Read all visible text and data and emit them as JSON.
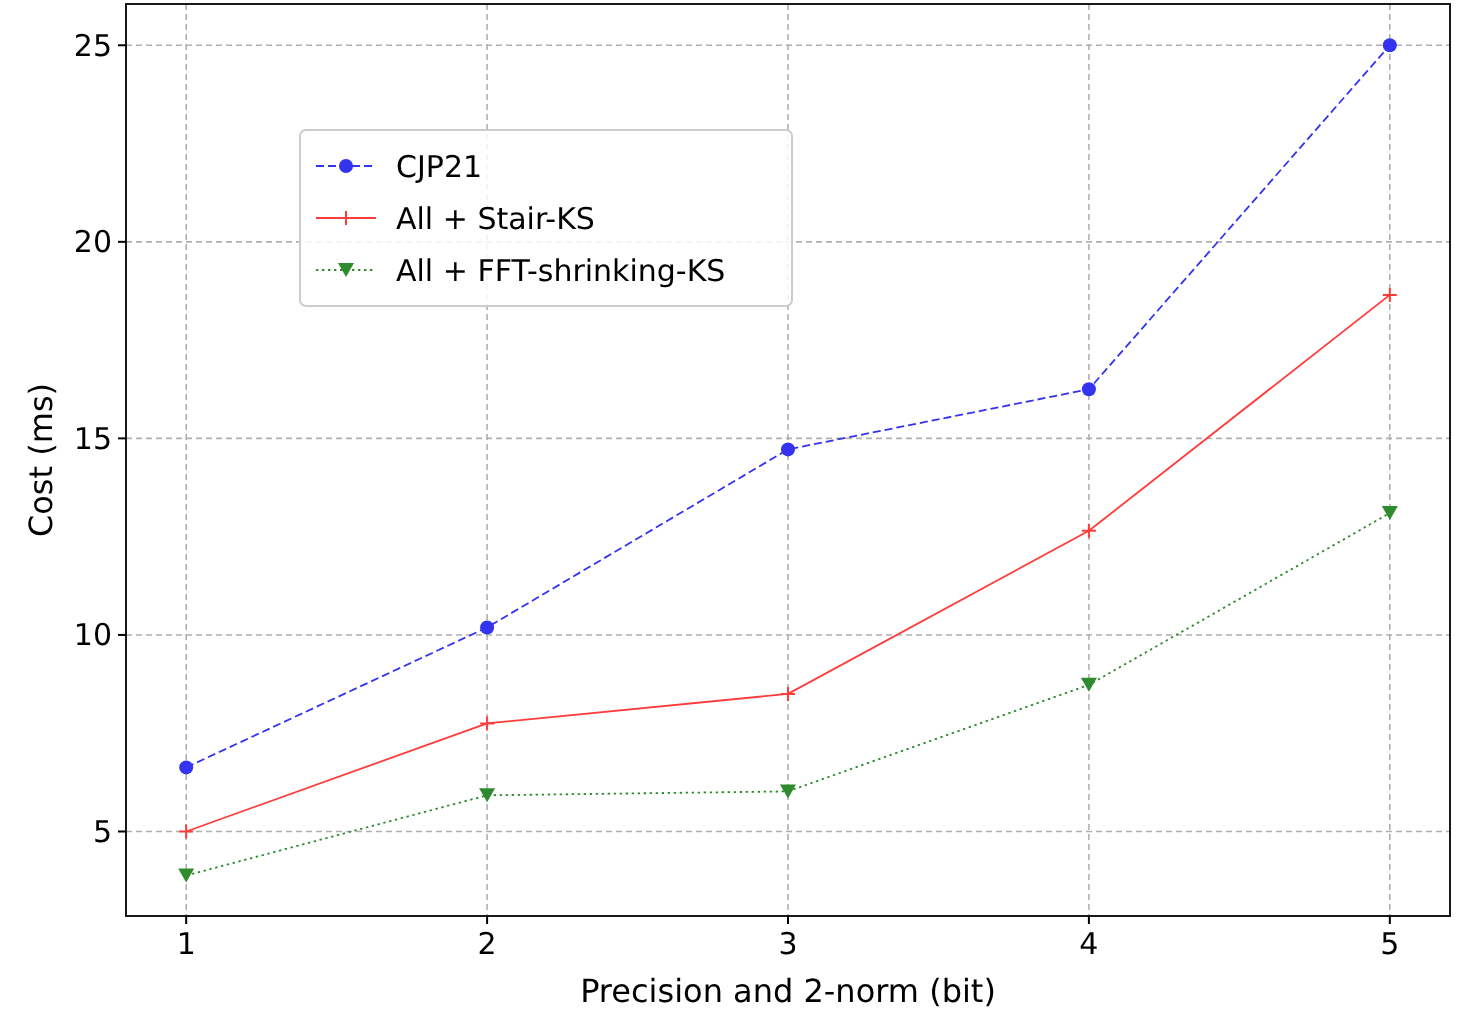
{
  "chart_data": {
    "type": "line",
    "xlabel": "Precision and 2-norm (bit)",
    "ylabel": "Cost (ms)",
    "x": [
      1,
      2,
      3,
      4,
      5
    ],
    "series": [
      {
        "name": "CJP21",
        "color": "#3333f0",
        "values": [
          6.63,
          10.19,
          14.72,
          16.25,
          25.0
        ],
        "marker": "circle",
        "line_style": "dashed"
      },
      {
        "name": "All + Stair-KS",
        "color": "#ff3b3b",
        "values": [
          5.0,
          7.75,
          8.5,
          12.65,
          18.65
        ],
        "marker": "cross",
        "line_style": "solid"
      },
      {
        "name": "All + FFT-shrinking-KS",
        "color": "#2e8b2e",
        "values": [
          3.88,
          5.92,
          6.02,
          8.73,
          13.1
        ],
        "marker": "triangle",
        "line_style": "dotted"
      }
    ],
    "xlim": [
      0.8,
      5.2
    ],
    "xticks": [
      1,
      2,
      3,
      4,
      5
    ],
    "ylim": [
      2.85,
      26.05
    ],
    "yticks": [
      5,
      10,
      15,
      20,
      25
    ],
    "grid": true,
    "legend": "top left"
  }
}
